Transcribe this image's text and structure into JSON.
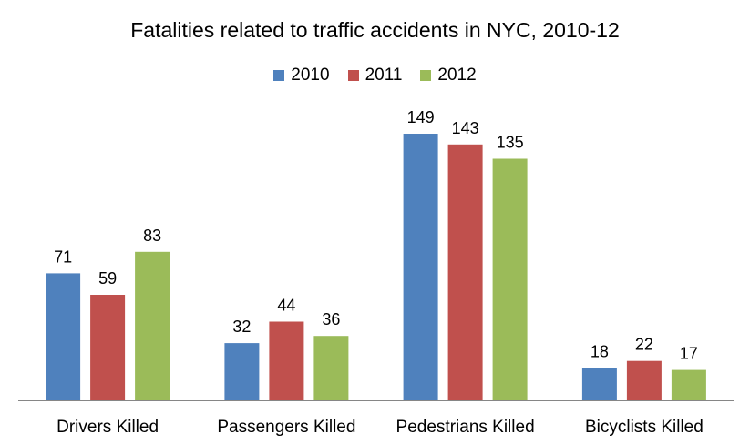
{
  "chart_data": {
    "type": "bar",
    "title": "Fatalities  related to traffic accidents in NYC, 2010-12",
    "categories": [
      "Drivers Killed",
      "Passengers Killed",
      "Pedestrians Killed",
      "Bicyclists Killed"
    ],
    "series": [
      {
        "name": "2010",
        "color": "#4f81bd",
        "values": [
          71,
          32,
          149,
          18
        ]
      },
      {
        "name": "2011",
        "color": "#c0504d",
        "values": [
          59,
          44,
          143,
          22
        ]
      },
      {
        "name": "2012",
        "color": "#9bbb59",
        "values": [
          83,
          36,
          135,
          17
        ]
      }
    ],
    "xlabel": "",
    "ylabel": "",
    "ylim": [
      0,
      160
    ],
    "grid": false,
    "legend_position": "top",
    "data_labels": true
  }
}
